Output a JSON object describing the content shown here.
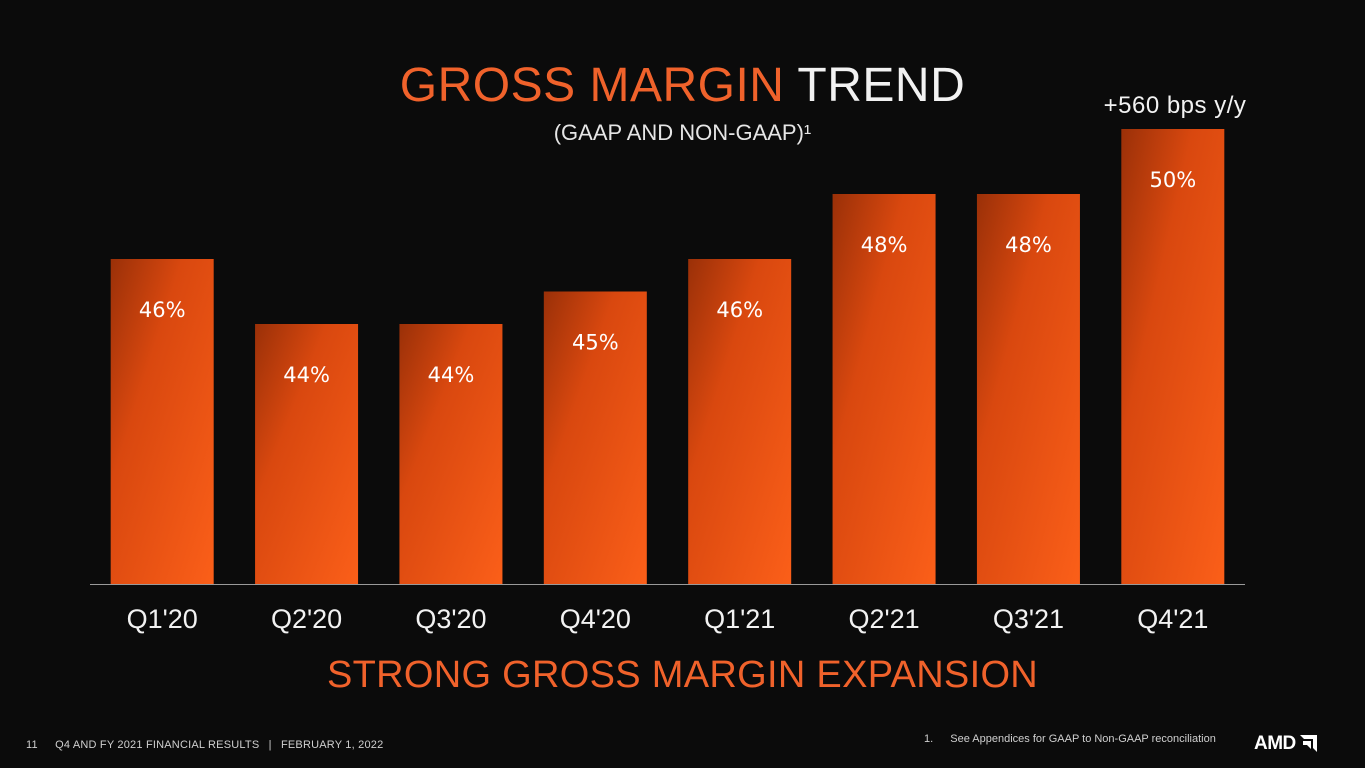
{
  "slide": {
    "title_accent": "GROSS MARGIN",
    "title_plain": "TREND",
    "subtitle": "(GAAP AND NON-GAAP)¹",
    "callout": "+560 bps y/y",
    "headline": "STRONG GROSS MARGIN EXPANSION",
    "page_number": "11",
    "footer_text": "Q4 AND FY 2021 FINANCIAL RESULTS",
    "footer_separator": "|",
    "footer_date": "FEBRUARY 1, 2022",
    "footnote_number": "1.",
    "footnote_text": "See Appendices for GAAP to Non-GAAP reconciliation",
    "logo_text": "AMD",
    "logo_icon": "amd-arrow-logo-icon"
  },
  "colors": {
    "accent": "#f0622b",
    "bar_dark": "#9a3008",
    "bar_mid": "#d9480f",
    "bar_light": "#fb5f19",
    "background": "#0b0b0b"
  },
  "chart_data": {
    "type": "bar",
    "categories": [
      "Q1'20",
      "Q2'20",
      "Q3'20",
      "Q4'20",
      "Q1'21",
      "Q2'21",
      "Q3'21",
      "Q4'21"
    ],
    "values": [
      46,
      44,
      44,
      45,
      46,
      48,
      48,
      50
    ],
    "data_labels": [
      "46%",
      "44%",
      "44%",
      "45%",
      "46%",
      "48%",
      "48%",
      "50%"
    ],
    "title": "GROSS MARGIN TREND",
    "subtitle": "(GAAP AND NON-GAAP)¹",
    "xlabel": "",
    "ylabel": "",
    "ylim": [
      36,
      50
    ],
    "grid": false,
    "legend": "none",
    "annotation": "+560 bps y/y"
  }
}
